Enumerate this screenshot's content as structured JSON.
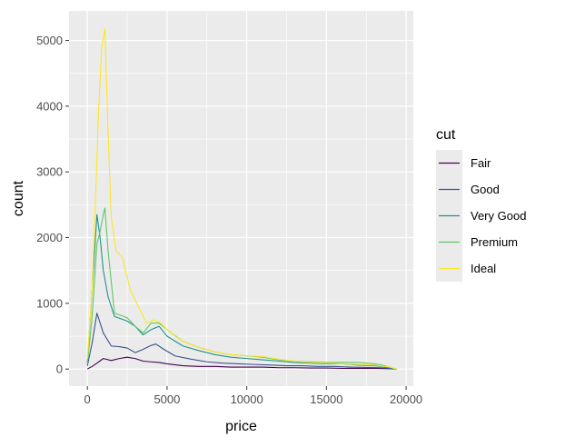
{
  "chart_data": {
    "type": "line",
    "title": "",
    "xlabel": "price",
    "ylabel": "count",
    "xlim": [
      -1150,
      20450
    ],
    "ylim": [
      -260,
      5450
    ],
    "x_ticks": [
      0,
      5000,
      10000,
      15000,
      20000
    ],
    "y_ticks": [
      0,
      1000,
      2000,
      3000,
      4000,
      5000
    ],
    "x_tick_labels": [
      "0",
      "5000",
      "10000",
      "15000",
      "20000"
    ],
    "y_tick_labels": [
      "0",
      "1000",
      "2000",
      "3000",
      "4000",
      "5000"
    ],
    "grid": true,
    "legend": {
      "title": "cut",
      "position": "right"
    },
    "series": [
      {
        "name": "Fair",
        "color": "#440154",
        "points": [
          [
            0,
            0
          ],
          [
            300,
            40
          ],
          [
            600,
            90
          ],
          [
            1000,
            160
          ],
          [
            1500,
            130
          ],
          [
            2000,
            160
          ],
          [
            2500,
            180
          ],
          [
            3000,
            160
          ],
          [
            3500,
            120
          ],
          [
            4000,
            110
          ],
          [
            4500,
            100
          ],
          [
            5000,
            80
          ],
          [
            6000,
            50
          ],
          [
            7000,
            40
          ],
          [
            8000,
            40
          ],
          [
            9000,
            30
          ],
          [
            10000,
            30
          ],
          [
            11000,
            30
          ],
          [
            12000,
            20
          ],
          [
            13000,
            20
          ],
          [
            14000,
            15
          ],
          [
            15000,
            15
          ],
          [
            16000,
            10
          ],
          [
            17000,
            10
          ],
          [
            18000,
            10
          ],
          [
            19000,
            5
          ],
          [
            19400,
            0
          ]
        ]
      },
      {
        "name": "Good",
        "color": "#3b528b",
        "points": [
          [
            0,
            50
          ],
          [
            300,
            400
          ],
          [
            600,
            850
          ],
          [
            800,
            700
          ],
          [
            1000,
            550
          ],
          [
            1500,
            350
          ],
          [
            2000,
            340
          ],
          [
            2500,
            320
          ],
          [
            3000,
            250
          ],
          [
            3500,
            300
          ],
          [
            4000,
            360
          ],
          [
            4300,
            380
          ],
          [
            4800,
            300
          ],
          [
            5500,
            200
          ],
          [
            6500,
            150
          ],
          [
            7500,
            110
          ],
          [
            8500,
            90
          ],
          [
            9500,
            80
          ],
          [
            10500,
            70
          ],
          [
            11500,
            60
          ],
          [
            12500,
            50
          ],
          [
            13500,
            50
          ],
          [
            14500,
            40
          ],
          [
            15500,
            40
          ],
          [
            16500,
            30
          ],
          [
            17500,
            25
          ],
          [
            18500,
            20
          ],
          [
            19400,
            0
          ]
        ]
      },
      {
        "name": "Very Good",
        "color": "#21918c",
        "points": [
          [
            0,
            100
          ],
          [
            300,
            1200
          ],
          [
            600,
            2350
          ],
          [
            800,
            2000
          ],
          [
            1000,
            1500
          ],
          [
            1300,
            1100
          ],
          [
            1700,
            800
          ],
          [
            2500,
            730
          ],
          [
            3000,
            650
          ],
          [
            3500,
            520
          ],
          [
            4000,
            600
          ],
          [
            4500,
            650
          ],
          [
            5000,
            500
          ],
          [
            6000,
            350
          ],
          [
            7000,
            280
          ],
          [
            8000,
            220
          ],
          [
            9000,
            180
          ],
          [
            10000,
            160
          ],
          [
            11000,
            140
          ],
          [
            12000,
            120
          ],
          [
            13000,
            100
          ],
          [
            14000,
            90
          ],
          [
            15000,
            80
          ],
          [
            16000,
            80
          ],
          [
            17000,
            60
          ],
          [
            18000,
            50
          ],
          [
            18500,
            40
          ],
          [
            19400,
            0
          ]
        ]
      },
      {
        "name": "Premium",
        "color": "#5ec962",
        "points": [
          [
            0,
            80
          ],
          [
            300,
            800
          ],
          [
            600,
            1900
          ],
          [
            800,
            2100
          ],
          [
            1000,
            2350
          ],
          [
            1100,
            2450
          ],
          [
            1300,
            1800
          ],
          [
            1700,
            850
          ],
          [
            2500,
            780
          ],
          [
            3000,
            650
          ],
          [
            3500,
            550
          ],
          [
            4000,
            700
          ],
          [
            4500,
            700
          ],
          [
            5000,
            600
          ],
          [
            6000,
            420
          ],
          [
            7000,
            330
          ],
          [
            8000,
            260
          ],
          [
            9000,
            220
          ],
          [
            10000,
            200
          ],
          [
            11000,
            180
          ],
          [
            12000,
            140
          ],
          [
            13000,
            120
          ],
          [
            14000,
            110
          ],
          [
            15000,
            100
          ],
          [
            16000,
            100
          ],
          [
            17000,
            100
          ],
          [
            18000,
            80
          ],
          [
            18500,
            60
          ],
          [
            19400,
            0
          ]
        ]
      },
      {
        "name": "Ideal",
        "color": "#fde725",
        "points": [
          [
            0,
            150
          ],
          [
            300,
            1200
          ],
          [
            500,
            2500
          ],
          [
            700,
            3900
          ],
          [
            900,
            4900
          ],
          [
            1100,
            5180
          ],
          [
            1300,
            3600
          ],
          [
            1500,
            2300
          ],
          [
            1800,
            1800
          ],
          [
            2200,
            1700
          ],
          [
            2700,
            1200
          ],
          [
            3200,
            950
          ],
          [
            3700,
            700
          ],
          [
            4200,
            750
          ],
          [
            4600,
            700
          ],
          [
            5000,
            600
          ],
          [
            5600,
            500
          ],
          [
            6000,
            420
          ],
          [
            7000,
            330
          ],
          [
            8000,
            260
          ],
          [
            9000,
            220
          ],
          [
            10000,
            200
          ],
          [
            11000,
            190
          ],
          [
            12000,
            150
          ],
          [
            13000,
            120
          ],
          [
            14000,
            100
          ],
          [
            15000,
            90
          ],
          [
            16000,
            80
          ],
          [
            17000,
            70
          ],
          [
            18000,
            60
          ],
          [
            19000,
            30
          ],
          [
            19400,
            0
          ]
        ]
      }
    ]
  }
}
